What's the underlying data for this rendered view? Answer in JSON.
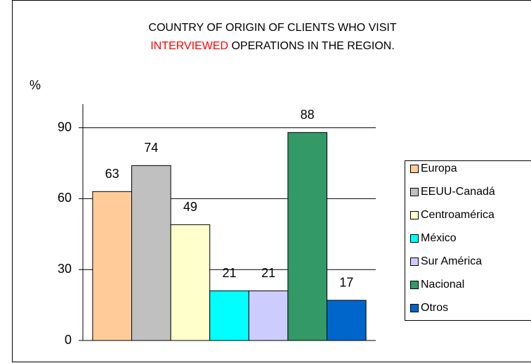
{
  "chart_data": {
    "type": "bar",
    "title": {
      "line1": "COUNTRY OF ORIGIN OF CLIENTS WHO VISIT",
      "highlight": "INTERVIEWED",
      "line2_rest": "OPERATIONS IN THE REGION."
    },
    "title_highlight_color": "#ff0000",
    "y_label": "%",
    "categories": [
      null
    ],
    "series": [
      {
        "name": "Europa",
        "color": "#ffcc99",
        "values": [
          63
        ]
      },
      {
        "name": "EEUU-Canadá",
        "color": "#c0c0c0",
        "values": [
          74
        ]
      },
      {
        "name": "Centroamérica",
        "color": "#ffffcc",
        "values": [
          49
        ]
      },
      {
        "name": "México",
        "color": "#00ffff",
        "values": [
          21
        ]
      },
      {
        "name": "Sur América",
        "color": "#ccccff",
        "values": [
          21
        ]
      },
      {
        "name": "Nacional",
        "color": "#339966",
        "values": [
          88
        ]
      },
      {
        "name": "Otros",
        "color": "#0066cc",
        "values": [
          17
        ]
      }
    ],
    "ylim": [
      0,
      100
    ],
    "yticks": [
      0,
      30,
      60,
      90
    ],
    "grid": true,
    "legend": "right"
  }
}
